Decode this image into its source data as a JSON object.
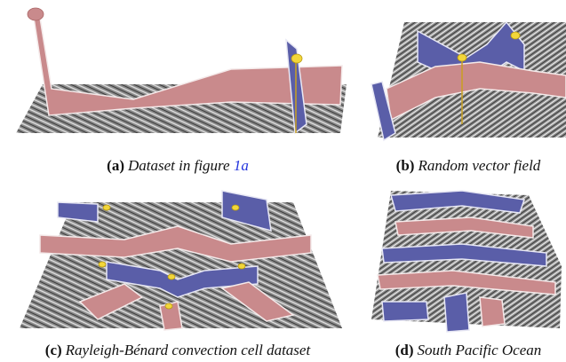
{
  "figures": [
    {
      "label": "(a)",
      "caption": "Dataset in figure ",
      "reference": "1a"
    },
    {
      "label": "(b)",
      "caption": "Random vector field"
    },
    {
      "label": "(c)",
      "caption": "Rayleigh-Bénard convection cell dataset"
    },
    {
      "label": "(d)",
      "caption": "South Pacific Ocean"
    }
  ]
}
